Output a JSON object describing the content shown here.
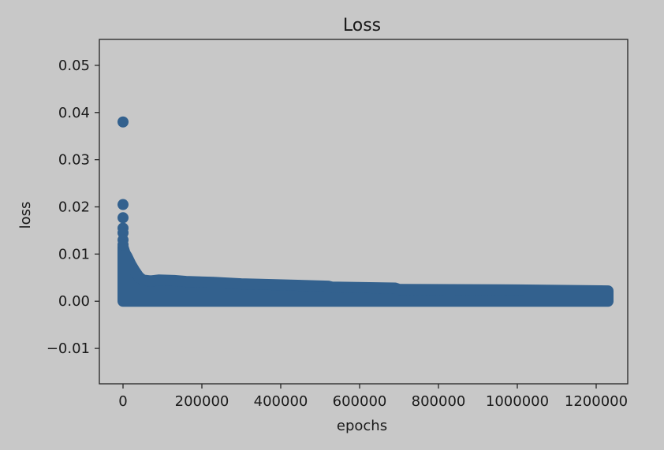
{
  "chart_data": {
    "type": "scatter",
    "title": "Loss",
    "xlabel": "epochs",
    "ylabel": "loss",
    "xlim": [
      -60000,
      1280000
    ],
    "ylim": [
      -0.0175,
      0.0555
    ],
    "grid": false,
    "marker_color": "#33618e",
    "axes_background": "#c8c8c8",
    "figure_background": "#c8c8c8",
    "xticks": [
      {
        "value": 0,
        "label": "0"
      },
      {
        "value": 200000,
        "label": "200000"
      },
      {
        "value": 400000,
        "label": "400000"
      },
      {
        "value": 600000,
        "label": "600000"
      },
      {
        "value": 800000,
        "label": "800000"
      },
      {
        "value": 1000000,
        "label": "1000000"
      },
      {
        "value": 1200000,
        "label": "1200000"
      }
    ],
    "yticks": [
      {
        "value": -0.01,
        "label": "−0.01"
      },
      {
        "value": 0.0,
        "label": "0.00"
      },
      {
        "value": 0.01,
        "label": "0.01"
      },
      {
        "value": 0.02,
        "label": "0.02"
      },
      {
        "value": 0.03,
        "label": "0.03"
      },
      {
        "value": 0.04,
        "label": "0.04"
      },
      {
        "value": 0.05,
        "label": "0.05"
      }
    ],
    "outlier_points": [
      {
        "x": 0,
        "y": 0.038
      },
      {
        "x": 0,
        "y": 0.0205
      },
      {
        "x": 0,
        "y": 0.0177
      },
      {
        "x": 0,
        "y": 0.0155
      },
      {
        "x": 0,
        "y": 0.0145
      },
      {
        "x": 0,
        "y": 0.013
      },
      {
        "x": 0,
        "y": 0.012
      }
    ],
    "dense_band": {
      "min_y": 0.0,
      "upper_envelope": [
        {
          "x": 0,
          "y": 0.0115
        },
        {
          "x": 5000,
          "y": 0.0102
        },
        {
          "x": 10000,
          "y": 0.0095
        },
        {
          "x": 20000,
          "y": 0.0078
        },
        {
          "x": 30000,
          "y": 0.0064
        },
        {
          "x": 40000,
          "y": 0.0052
        },
        {
          "x": 50000,
          "y": 0.0045
        },
        {
          "x": 70000,
          "y": 0.0043
        },
        {
          "x": 90000,
          "y": 0.0045
        },
        {
          "x": 130000,
          "y": 0.0044
        },
        {
          "x": 160000,
          "y": 0.0042
        },
        {
          "x": 230000,
          "y": 0.004
        },
        {
          "x": 300000,
          "y": 0.0037
        },
        {
          "x": 350000,
          "y": 0.0036
        },
        {
          "x": 520000,
          "y": 0.0032
        },
        {
          "x": 530000,
          "y": 0.003
        },
        {
          "x": 690000,
          "y": 0.0028
        },
        {
          "x": 700000,
          "y": 0.0025
        },
        {
          "x": 1000000,
          "y": 0.0024
        },
        {
          "x": 1230000,
          "y": 0.0022
        }
      ]
    }
  }
}
